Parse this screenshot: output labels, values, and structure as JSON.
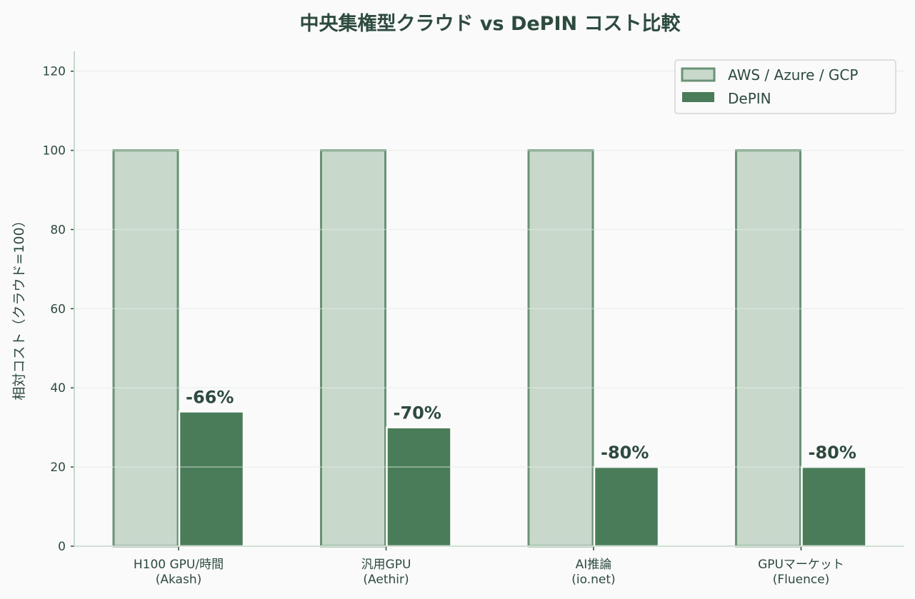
{
  "chart_data": {
    "type": "bar",
    "title": "中央集権型クラウド vs DePIN コスト比較",
    "xlabel": "",
    "ylabel": "相対コスト（クラウド=100）",
    "ylim": [
      0,
      125
    ],
    "yticks": [
      0,
      20,
      40,
      60,
      80,
      100,
      120
    ],
    "grid": "y",
    "legend_position": "top-right",
    "categories": [
      [
        "H100 GPU/時間",
        "(Akash)"
      ],
      [
        "汎用GPU",
        "(Aethir)"
      ],
      [
        "AI推論",
        "(io.net)"
      ],
      [
        "GPUマーケット",
        "(Fluence)"
      ]
    ],
    "series": [
      {
        "name": "AWS / Azure / GCP",
        "values": [
          100,
          100,
          100,
          100
        ],
        "color": "#c8d9cc",
        "edge": "#6a9275"
      },
      {
        "name": "DePIN",
        "values": [
          34,
          30,
          20,
          20
        ],
        "color": "#4a7c59",
        "edge": "#ffffff"
      }
    ],
    "data_labels": [
      "-66%",
      "-70%",
      "-80%",
      "-80%"
    ]
  }
}
